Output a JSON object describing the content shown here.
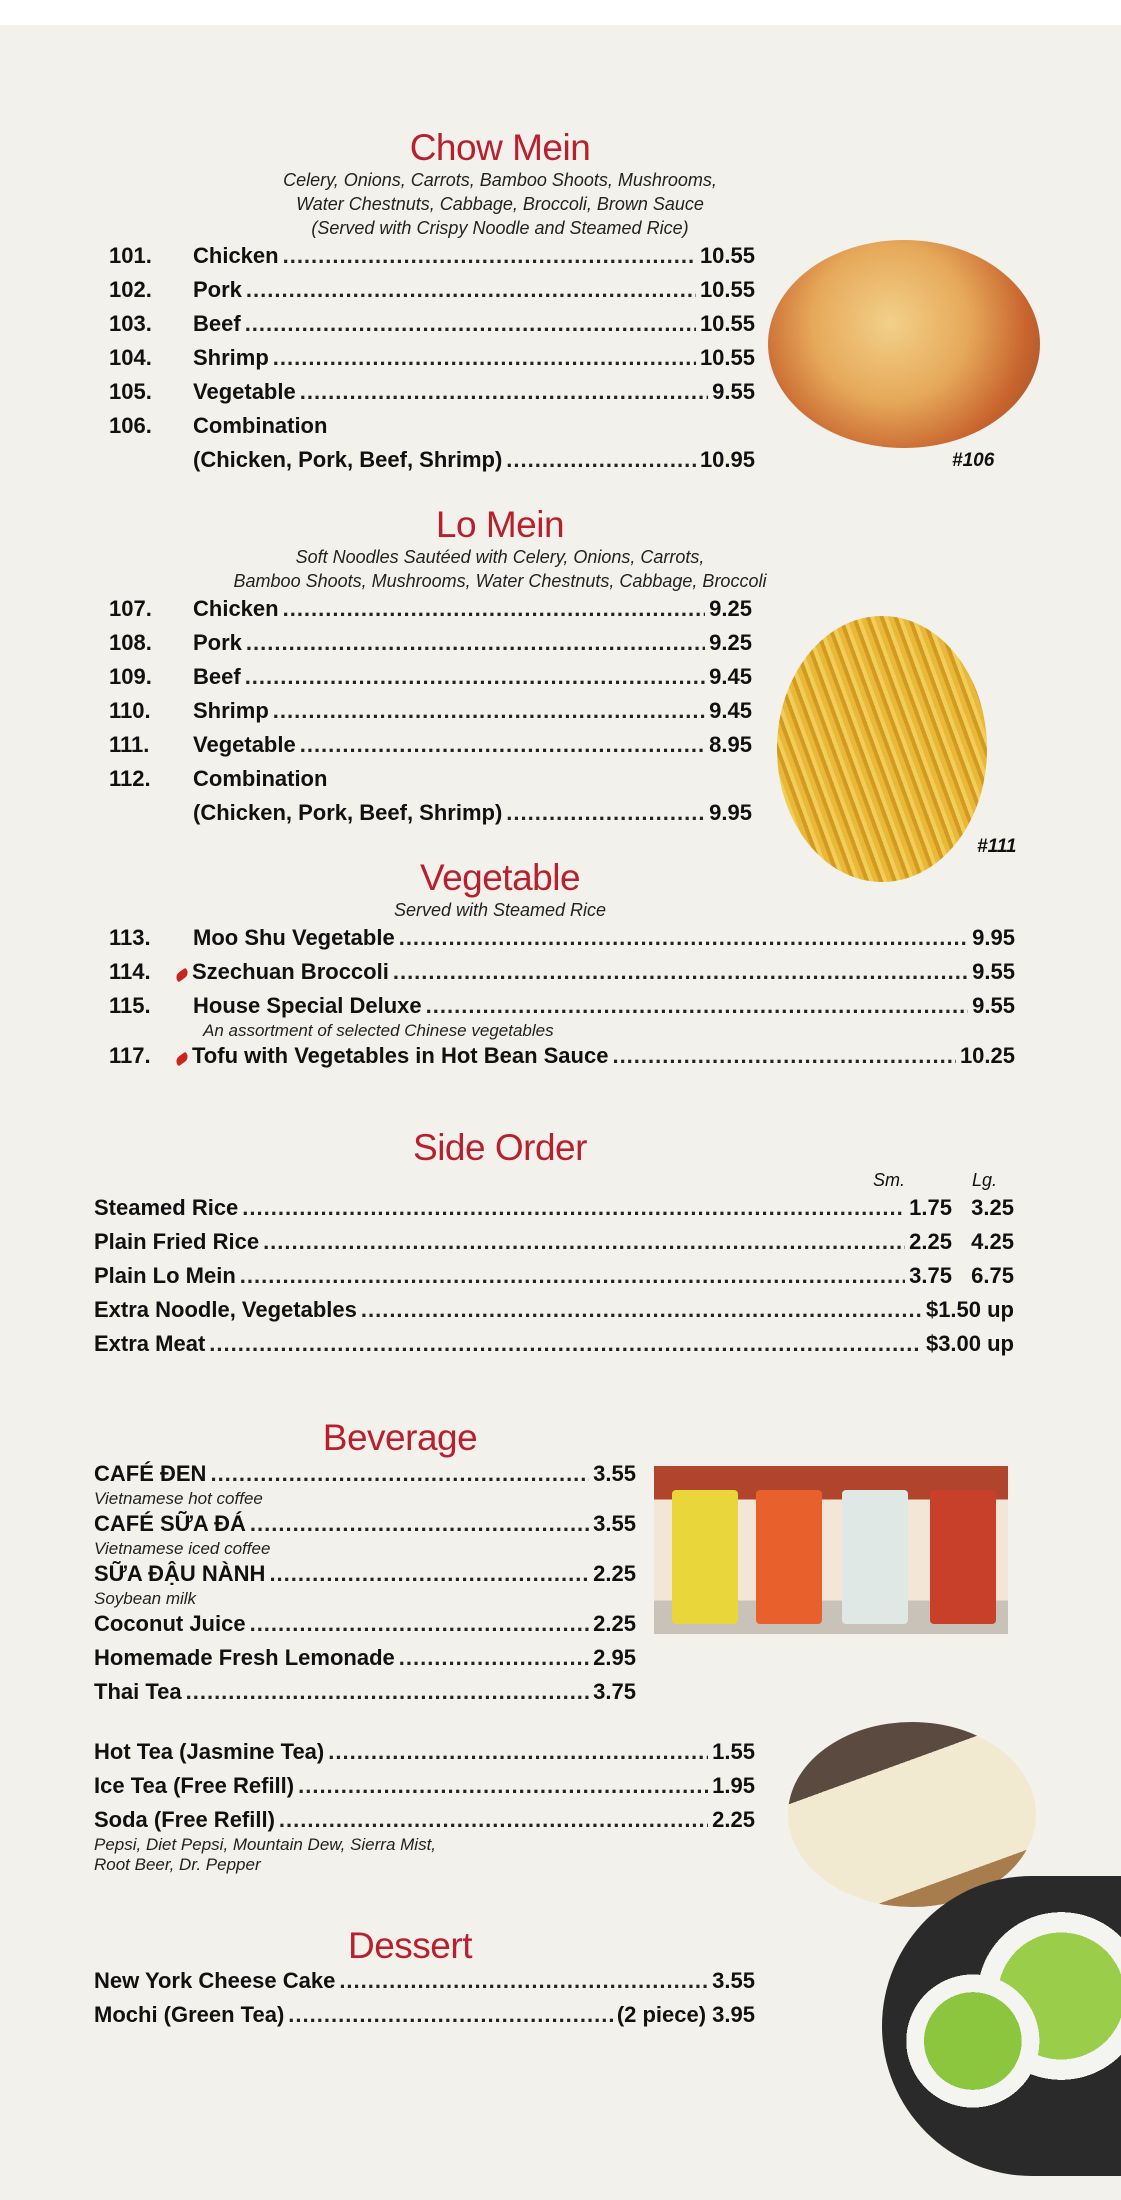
{
  "chow_mein": {
    "title": "Chow Mein",
    "desc": [
      "Celery, Onions, Carrots, Bamboo Shoots, Mushrooms,",
      "Water Chestnuts, Cabbage, Broccoli, Brown Sauce",
      "(Served with Crispy Noodle and Steamed Rice)"
    ],
    "items": [
      {
        "num": "101.",
        "name": "Chicken",
        "price": "10.55"
      },
      {
        "num": "102.",
        "name": "Pork",
        "price": "10.55"
      },
      {
        "num": "103.",
        "name": "Beef",
        "price": "10.55"
      },
      {
        "num": "104.",
        "name": "Shrimp",
        "price": "10.55"
      },
      {
        "num": "105.",
        "name": "Vegetable",
        "price": "9.55"
      },
      {
        "num": "106.",
        "name": "Combination",
        "price": ""
      },
      {
        "num": "",
        "name": "(Chicken, Pork, Beef, Shrimp)",
        "price": "10.95"
      }
    ],
    "photo_caption": "#106"
  },
  "lo_mein": {
    "title": "Lo Mein",
    "desc": [
      "Soft Noodles Sautéed with Celery, Onions, Carrots,",
      "Bamboo Shoots, Mushrooms, Water Chestnuts, Cabbage, Broccoli"
    ],
    "items": [
      {
        "num": "107.",
        "name": "Chicken",
        "price": "9.25"
      },
      {
        "num": "108.",
        "name": "Pork",
        "price": "9.25"
      },
      {
        "num": "109.",
        "name": "Beef",
        "price": "9.45"
      },
      {
        "num": "110.",
        "name": "Shrimp",
        "price": "9.45"
      },
      {
        "num": "111.",
        "name": "Vegetable",
        "price": "8.95"
      },
      {
        "num": "112.",
        "name": "Combination",
        "price": ""
      },
      {
        "num": "",
        "name": "(Chicken, Pork, Beef, Shrimp)",
        "price": "9.95"
      }
    ],
    "photo_caption": "#111"
  },
  "vegetable": {
    "title": "Vegetable",
    "desc": [
      "Served with Steamed Rice"
    ],
    "items": [
      {
        "num": "113.",
        "name": "Moo Shu Vegetable",
        "price": "9.95"
      },
      {
        "num": "114.",
        "name": "Szechuan Broccoli",
        "price": "9.55",
        "spicy": true
      },
      {
        "num": "115.",
        "name": "House Special Deluxe",
        "price": "9.55",
        "sub": "An assortment of selected Chinese vegetables"
      },
      {
        "num": "117.",
        "name": "Tofu with Vegetables in Hot Bean Sauce",
        "price": "10.25",
        "spicy": true
      }
    ]
  },
  "side_order": {
    "title": "Side Order",
    "sm": "Sm.",
    "lg": "Lg.",
    "items": [
      {
        "name": "Steamed Rice",
        "price": "1.75",
        "lg": "3.25"
      },
      {
        "name": "Plain Fried Rice",
        "price": "2.25",
        "lg": "4.25"
      },
      {
        "name": "Plain Lo Mein",
        "price": "3.75",
        "lg": "6.75"
      },
      {
        "name": "Extra Noodle, Vegetables",
        "price": "$1.50 up"
      },
      {
        "name": "Extra Meat",
        "price": "$3.00 up"
      }
    ]
  },
  "beverage": {
    "title": "Beverage",
    "items_a": [
      {
        "name": "CAFÉ ĐEN",
        "price": "3.55",
        "sub": "Vietnamese hot coffee"
      },
      {
        "name": "CAFÉ SỮA ĐÁ",
        "price": "3.55",
        "sub": "Vietnamese iced coffee"
      },
      {
        "name": "SỮA ĐẬU NÀNH",
        "price": "2.25",
        "sub": "Soybean milk"
      },
      {
        "name": "Coconut Juice",
        "price": "2.25"
      },
      {
        "name": "Homemade Fresh Lemonade",
        "price": "2.95"
      },
      {
        "name": "Thai Tea",
        "price": "3.75"
      }
    ],
    "items_b": [
      {
        "name": "Hot Tea (Jasmine Tea)",
        "price": "1.55"
      },
      {
        "name": "Ice Tea (Free Refill)",
        "price": "1.95"
      },
      {
        "name": "Soda (Free Refill)",
        "price": "2.25",
        "sub": "Pepsi, Diet Pepsi, Mountain Dew, Sierra Mist,\nRoot Beer, Dr. Pepper"
      }
    ]
  },
  "dessert": {
    "title": "Dessert",
    "items": [
      {
        "name": "New York Cheese Cake",
        "price": "3.55"
      },
      {
        "name": "Mochi (Green Tea)",
        "price": "(2 piece) 3.95"
      }
    ]
  },
  "colors": {
    "title": "#b8202e",
    "background": "#f3f1ec"
  }
}
